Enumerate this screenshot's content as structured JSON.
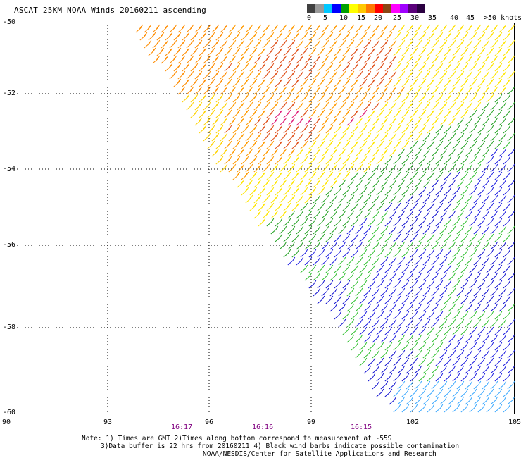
{
  "title": "ASCAT 25KM NOAA Winds 20160211 ascending",
  "colorbar": {
    "colors": [
      "#404040",
      "#9a9a9a",
      "#00c8ff",
      "#0000ff",
      "#00a000",
      "#ffff00",
      "#ffc800",
      "#ff7800",
      "#ff0000",
      "#8b4513",
      "#ff00ff",
      "#a000ff",
      "#5a007a",
      "#2a0040"
    ],
    "labels": [
      "0",
      "5",
      "10",
      "15",
      "20",
      "25",
      "30",
      "35",
      "40",
      "45",
      ">50 knots"
    ]
  },
  "lat_labels": [
    "-50",
    "-52",
    "-54",
    "-56",
    "-58",
    "-60"
  ],
  "lon_labels": [
    "90",
    "93",
    "96",
    "99",
    "102",
    "105"
  ],
  "time_labels": [
    "16:17",
    "16:16",
    "16:15"
  ],
  "notes": {
    "line1": "Note: 1) Times are GMT 2)Times along bottom correspond to measurement at -55S",
    "line2": "3)Data buffer is 22 hrs from 20160211 4) Black wind barbs indicate possible contamination",
    "line3": "NOAA/NESDIS/Center for Satellite Applications and Research"
  }
}
